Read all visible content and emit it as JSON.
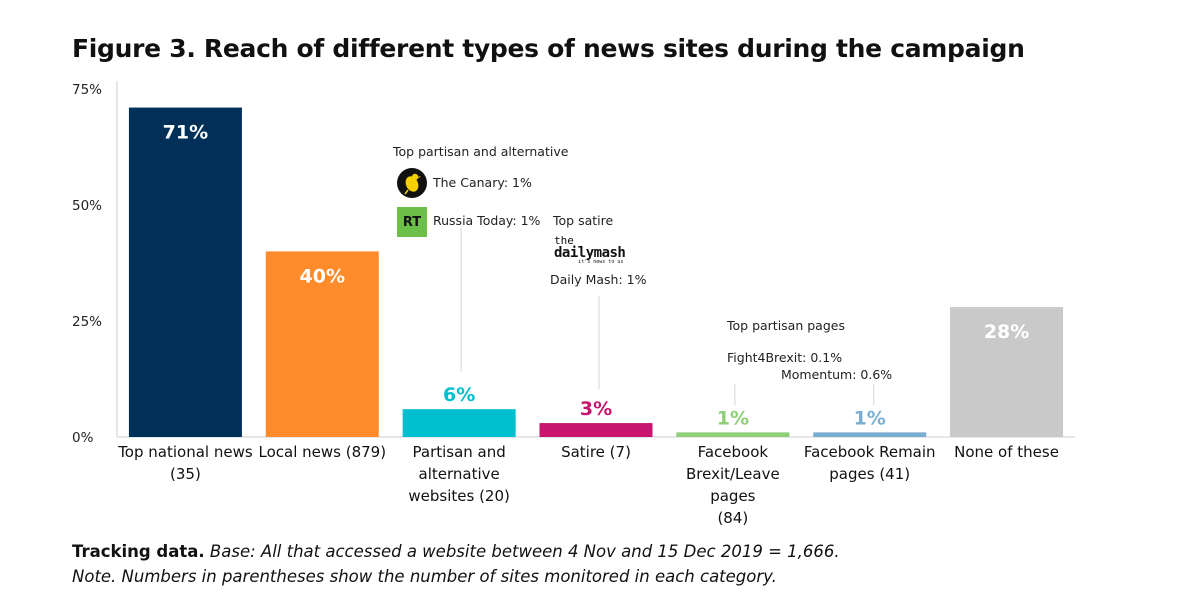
{
  "title": "Figure 3. Reach of different types of news sites during the campaign",
  "chart_data": {
    "type": "bar",
    "categories": [
      "Top national news (35)",
      "Local news (879)",
      "Partisan and alternative websites (20)",
      "Satire (7)",
      "Facebook Brexit/Leave pages (84)",
      "Facebook Remain pages (41)",
      "None of these"
    ],
    "category_lines": [
      [
        "Top national news",
        "(35)"
      ],
      [
        "Local news (879)"
      ],
      [
        "Partisan and",
        "alternative",
        "websites (20)"
      ],
      [
        "Satire (7)"
      ],
      [
        "Facebook",
        "Brexit/Leave pages",
        "(84)"
      ],
      [
        "Facebook Remain",
        "pages (41)"
      ],
      [
        "None of these"
      ]
    ],
    "values": [
      71,
      40,
      6,
      3,
      1,
      1,
      28
    ],
    "value_labels": [
      "71%",
      "40%",
      "6%",
      "3%",
      "1%",
      "1%",
      "28%"
    ],
    "colors": [
      "#003057",
      "#ff8b2a",
      "#00bfcf",
      "#c8146e",
      "#8ecf78",
      "#7aaed0",
      "#c9c9c9"
    ],
    "label_colors": [
      "#ffffff",
      "#ffffff",
      "#00bfcf",
      "#c8146e",
      "#8ecf78",
      "#7aaed0",
      "#ffffff"
    ],
    "label_inside": [
      true,
      true,
      false,
      false,
      false,
      false,
      true
    ],
    "ylim": [
      0,
      75
    ],
    "yticks": [
      0,
      25,
      50,
      75
    ],
    "ytick_labels": [
      "0%",
      "25%",
      "50%",
      "75%"
    ],
    "xlabel": "",
    "ylabel": ""
  },
  "annotations": {
    "partisan_heading": "Top partisan and alternative",
    "canary": "The Canary: 1%",
    "rt_logo": "RT",
    "russia_today": "Russia Today: 1%",
    "satire_heading": "Top satire",
    "mash_logo_the": "the",
    "mash_logo_name": "dailymash",
    "mash_logo_tag": "it's news to us",
    "daily_mash": "Daily Mash: 1%",
    "pages_heading": "Top partisan pages",
    "fight4brexit": "Fight4Brexit: 0.1%",
    "momentum": "Momentum: 0.6%"
  },
  "footer": {
    "bold": "Tracking data.",
    "base": "Base: All that accessed a website between 4 Nov and 15 Dec 2019 = 1,666.",
    "note": "Note. Numbers in parentheses show the number of sites monitored in each category."
  }
}
